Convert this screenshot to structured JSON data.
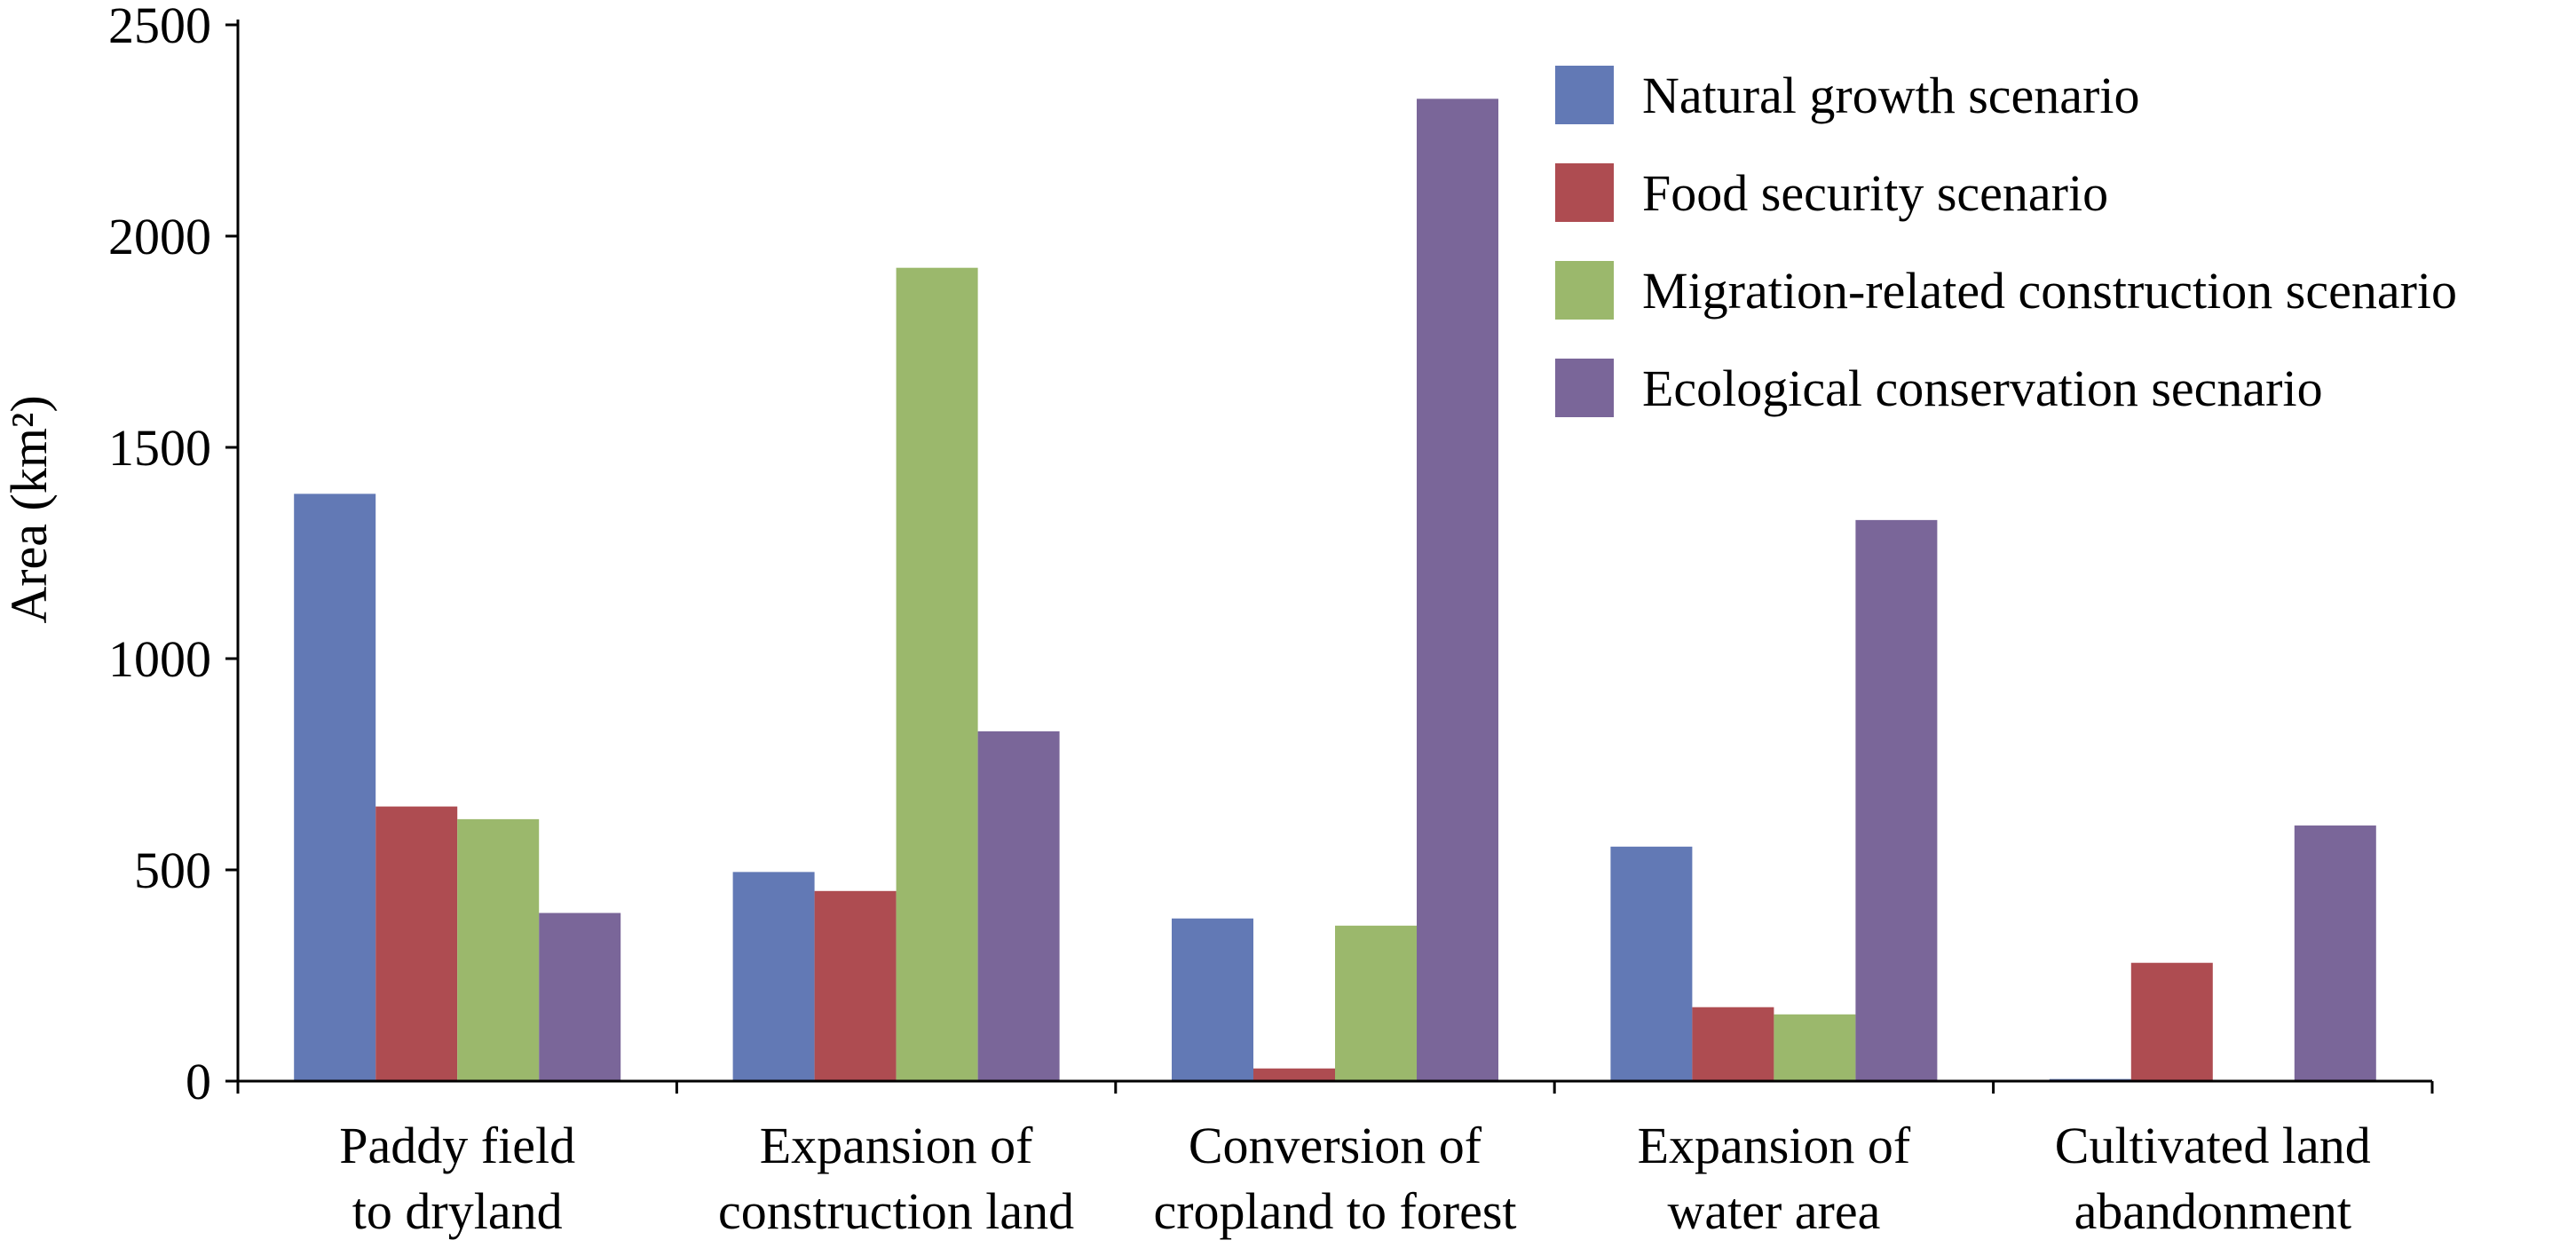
{
  "chart_data": {
    "type": "bar",
    "title": "",
    "xlabel": "",
    "ylabel": "Area (km²)",
    "ylim": [
      0,
      2500
    ],
    "yticks": [
      0,
      500,
      1000,
      1500,
      2000,
      2500
    ],
    "grid": false,
    "legend_position": "top-right",
    "categories": [
      [
        "Paddy field",
        "to dryland"
      ],
      [
        "Expansion of",
        "construction land"
      ],
      [
        "Conversion of",
        "cropland to forest"
      ],
      [
        "Expansion of",
        "water area"
      ],
      [
        "Cultivated land",
        "abandonment"
      ]
    ],
    "series": [
      {
        "name": "Natural growth scenario",
        "color": "#6279b5",
        "values": [
          1390,
          495,
          385,
          555,
          5
        ]
      },
      {
        "name": "Food security scenario",
        "color": "#ae4c51",
        "values": [
          650,
          450,
          30,
          175,
          280
        ]
      },
      {
        "name": "Migration-related construction scenario",
        "color": "#9bb86c",
        "values": [
          620,
          1925,
          368,
          158,
          0
        ]
      },
      {
        "name": "Ecological conservation secnario",
        "color": "#7a6699",
        "values": [
          398,
          828,
          2325,
          1328,
          605
        ]
      }
    ]
  }
}
